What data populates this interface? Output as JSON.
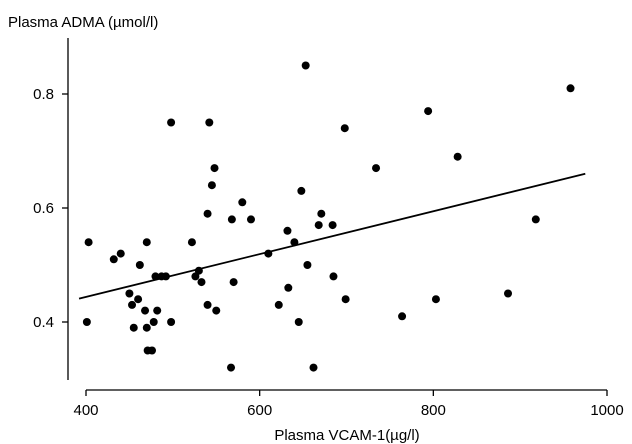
{
  "chart_data": {
    "type": "scatter",
    "title": "",
    "xlabel": "Plasma VCAM-1(µg/l)",
    "ylabel": "Plasma ADMA (µmol/l)",
    "xlim": [
      390,
      1000
    ],
    "ylim": [
      0.3,
      0.9
    ],
    "xticks": [
      400,
      600,
      800,
      1000
    ],
    "xtick_labels": [
      "400",
      "600",
      "800",
      "1000"
    ],
    "yticks": [
      0.4,
      0.6,
      0.8
    ],
    "ytick_labels": [
      "0.4",
      "0.6",
      "0.8"
    ],
    "grid": false,
    "legend": "none",
    "series": [
      {
        "points": [
          {
            "x": 403,
            "y": 0.54
          },
          {
            "x": 401,
            "y": 0.4
          },
          {
            "x": 432,
            "y": 0.51
          },
          {
            "x": 440,
            "y": 0.52
          },
          {
            "x": 450,
            "y": 0.45
          },
          {
            "x": 453,
            "y": 0.43
          },
          {
            "x": 455,
            "y": 0.39
          },
          {
            "x": 460,
            "y": 0.44
          },
          {
            "x": 462,
            "y": 0.5
          },
          {
            "x": 468,
            "y": 0.42
          },
          {
            "x": 470,
            "y": 0.54
          },
          {
            "x": 470,
            "y": 0.39
          },
          {
            "x": 471,
            "y": 0.35
          },
          {
            "x": 476,
            "y": 0.35
          },
          {
            "x": 478,
            "y": 0.4
          },
          {
            "x": 480,
            "y": 0.48
          },
          {
            "x": 482,
            "y": 0.42
          },
          {
            "x": 487,
            "y": 0.48
          },
          {
            "x": 492,
            "y": 0.48
          },
          {
            "x": 498,
            "y": 0.4
          },
          {
            "x": 498,
            "y": 0.75
          },
          {
            "x": 522,
            "y": 0.54
          },
          {
            "x": 526,
            "y": 0.48
          },
          {
            "x": 530,
            "y": 0.49
          },
          {
            "x": 533,
            "y": 0.47
          },
          {
            "x": 540,
            "y": 0.43
          },
          {
            "x": 540,
            "y": 0.59
          },
          {
            "x": 542,
            "y": 0.75
          },
          {
            "x": 545,
            "y": 0.64
          },
          {
            "x": 548,
            "y": 0.67
          },
          {
            "x": 550,
            "y": 0.42
          },
          {
            "x": 567,
            "y": 0.32
          },
          {
            "x": 568,
            "y": 0.58
          },
          {
            "x": 570,
            "y": 0.47
          },
          {
            "x": 580,
            "y": 0.61
          },
          {
            "x": 590,
            "y": 0.58
          },
          {
            "x": 610,
            "y": 0.52
          },
          {
            "x": 622,
            "y": 0.43
          },
          {
            "x": 632,
            "y": 0.56
          },
          {
            "x": 633,
            "y": 0.46
          },
          {
            "x": 640,
            "y": 0.54
          },
          {
            "x": 645,
            "y": 0.4
          },
          {
            "x": 648,
            "y": 0.63
          },
          {
            "x": 653,
            "y": 0.85
          },
          {
            "x": 655,
            "y": 0.5
          },
          {
            "x": 662,
            "y": 0.32
          },
          {
            "x": 668,
            "y": 0.57
          },
          {
            "x": 671,
            "y": 0.59
          },
          {
            "x": 684,
            "y": 0.57
          },
          {
            "x": 685,
            "y": 0.48
          },
          {
            "x": 698,
            "y": 0.74
          },
          {
            "x": 699,
            "y": 0.44
          },
          {
            "x": 734,
            "y": 0.67
          },
          {
            "x": 764,
            "y": 0.41
          },
          {
            "x": 794,
            "y": 0.77
          },
          {
            "x": 803,
            "y": 0.44
          },
          {
            "x": 828,
            "y": 0.69
          },
          {
            "x": 886,
            "y": 0.45
          },
          {
            "x": 918,
            "y": 0.58
          },
          {
            "x": 958,
            "y": 0.81
          }
        ]
      }
    ],
    "trendline": {
      "x": [
        392,
        975
      ],
      "y": [
        0.441,
        0.66
      ]
    }
  }
}
